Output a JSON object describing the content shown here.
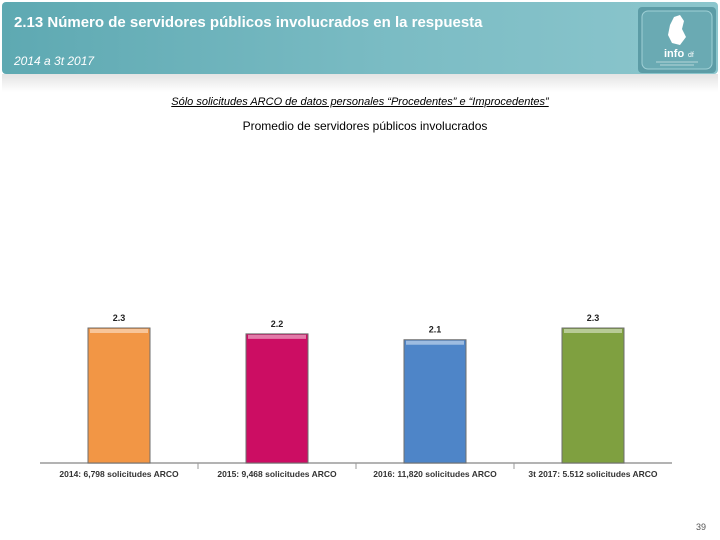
{
  "header": {
    "title": "2.13 Número de servidores públicos involucrados en la respuesta",
    "subtitle": "2014 a 3t 2017",
    "logo_text": "info",
    "logo_letter": "df"
  },
  "note": "Sólo solicitudes ARCO de datos personales “Procedentes” e “Improcedentes”",
  "chart_data": {
    "type": "bar",
    "title": "Promedio de servidores públicos involucrados",
    "categories": [
      "2014: 6,798 solicitudes ARCO",
      "2015: 9,468 solicitudes ARCO",
      "2016: 11,820 solicitudes ARCO",
      "3t 2017: 5.512 solicitudes ARCO"
    ],
    "values": [
      2.3,
      2.2,
      2.1,
      2.3
    ],
    "labels": [
      "2.3",
      "2.2",
      "2.1",
      "2.3"
    ],
    "colors": [
      "#f29645",
      "#cc0d63",
      "#4e85c8",
      "#7fa040"
    ],
    "ylim": [
      0,
      2.3
    ],
    "grid": false,
    "legend": "none"
  },
  "page_number": "39"
}
